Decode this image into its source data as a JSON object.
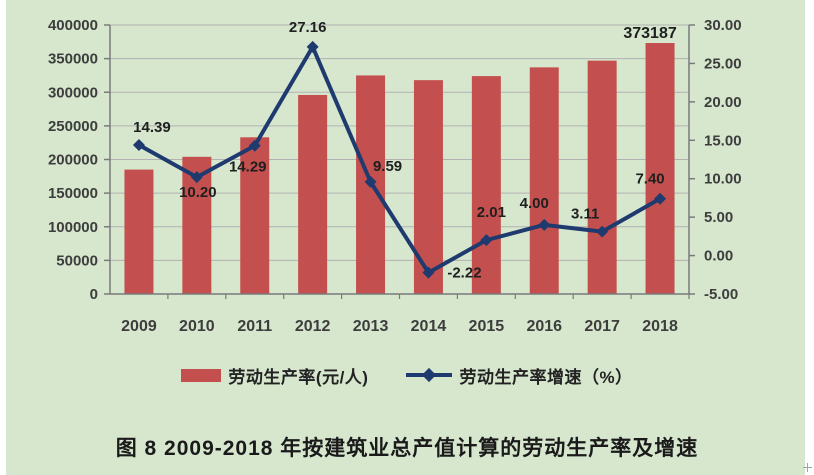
{
  "window": {
    "background": "#ffffff",
    "canvas_background": "#d6e7ce"
  },
  "chart_data": {
    "type": "bar",
    "subtype": "bar+line dual-axis combo",
    "categories": [
      "2009",
      "2010",
      "2011",
      "2012",
      "2013",
      "2014",
      "2015",
      "2016",
      "2017",
      "2018"
    ],
    "series": [
      {
        "name": "劳动生产率(元/人)",
        "type": "bar",
        "axis": "left",
        "color": "#c3504e",
        "values": [
          185000,
          204000,
          233000,
          296000,
          325000,
          318000,
          324000,
          337000,
          347000,
          373187
        ]
      },
      {
        "name": "劳动生产率增速（%）",
        "type": "line",
        "axis": "right",
        "color": "#1e3a6e",
        "marker": "diamond",
        "values": [
          14.39,
          10.2,
          14.29,
          27.16,
          9.59,
          -2.22,
          2.01,
          4.0,
          3.11,
          7.4
        ],
        "point_labels": [
          "14.39",
          "10.20",
          "14.29",
          "27.16",
          "9.59",
          "-2.22",
          "2.01",
          "4.00",
          "3.11",
          "7.40"
        ]
      }
    ],
    "bar_value_labels": [
      {
        "category": "2018",
        "text": "373187"
      }
    ],
    "left_axis": {
      "min": 0,
      "max": 400000,
      "step": 50000,
      "tick_labels": [
        "400000",
        "350000",
        "300000",
        "250000",
        "200000",
        "150000",
        "100000",
        "50000",
        "0"
      ]
    },
    "right_axis": {
      "min": -5,
      "max": 30,
      "step": 5,
      "tick_labels": [
        "30.00",
        "25.00",
        "20.00",
        "15.00",
        "10.00",
        "5.00",
        "0.00",
        "-5.00"
      ]
    },
    "grid": "horizontal gridlines on",
    "legend_position": "bottom",
    "title": "图 8  2009-2018 年按建筑业总产值计算的劳动生产率及增速",
    "colors": {
      "gridline": "#b2b2b2",
      "axis_line": "#7a7a7a",
      "tick_label": "#3d3d3d",
      "data_label": "#1f1f1f"
    }
  },
  "legend": {
    "items": [
      {
        "label": "劳动生产率(元/人)",
        "swatch": "bar",
        "color": "#c3504e"
      },
      {
        "label": "劳动生产率增速（%）",
        "swatch": "line-diamond",
        "color": "#1e3a6e"
      }
    ]
  },
  "caption": {
    "text": "图 8  2009-2018 年按建筑业总产值计算的劳动生产率及增速"
  }
}
